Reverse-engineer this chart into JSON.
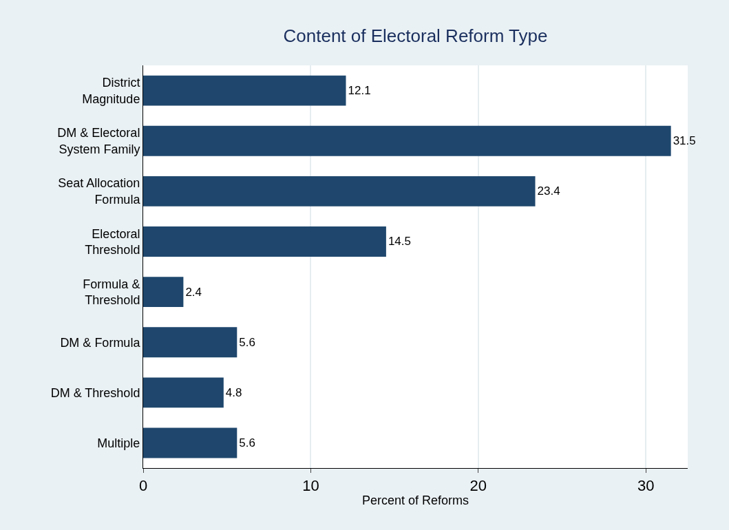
{
  "chart_data": {
    "type": "bar",
    "orientation": "horizontal",
    "title": "Content of Electoral Reform Type",
    "xlabel": "Percent of Reforms",
    "categories": [
      "District\nMagnitude",
      "DM & Electoral\nSystem Family",
      "Seat Allocation\nFormula",
      "Electoral\nThreshold",
      "Formula &\nThreshold",
      "DM & Formula",
      "DM & Threshold",
      "Multiple"
    ],
    "values": [
      12.1,
      31.5,
      23.4,
      14.5,
      2.4,
      5.6,
      4.8,
      5.6
    ],
    "color": "#1f476d",
    "data_labels": true,
    "xlim": [
      0,
      32.5
    ],
    "xticks": [
      0,
      10,
      20,
      30
    ],
    "grid": "x"
  }
}
